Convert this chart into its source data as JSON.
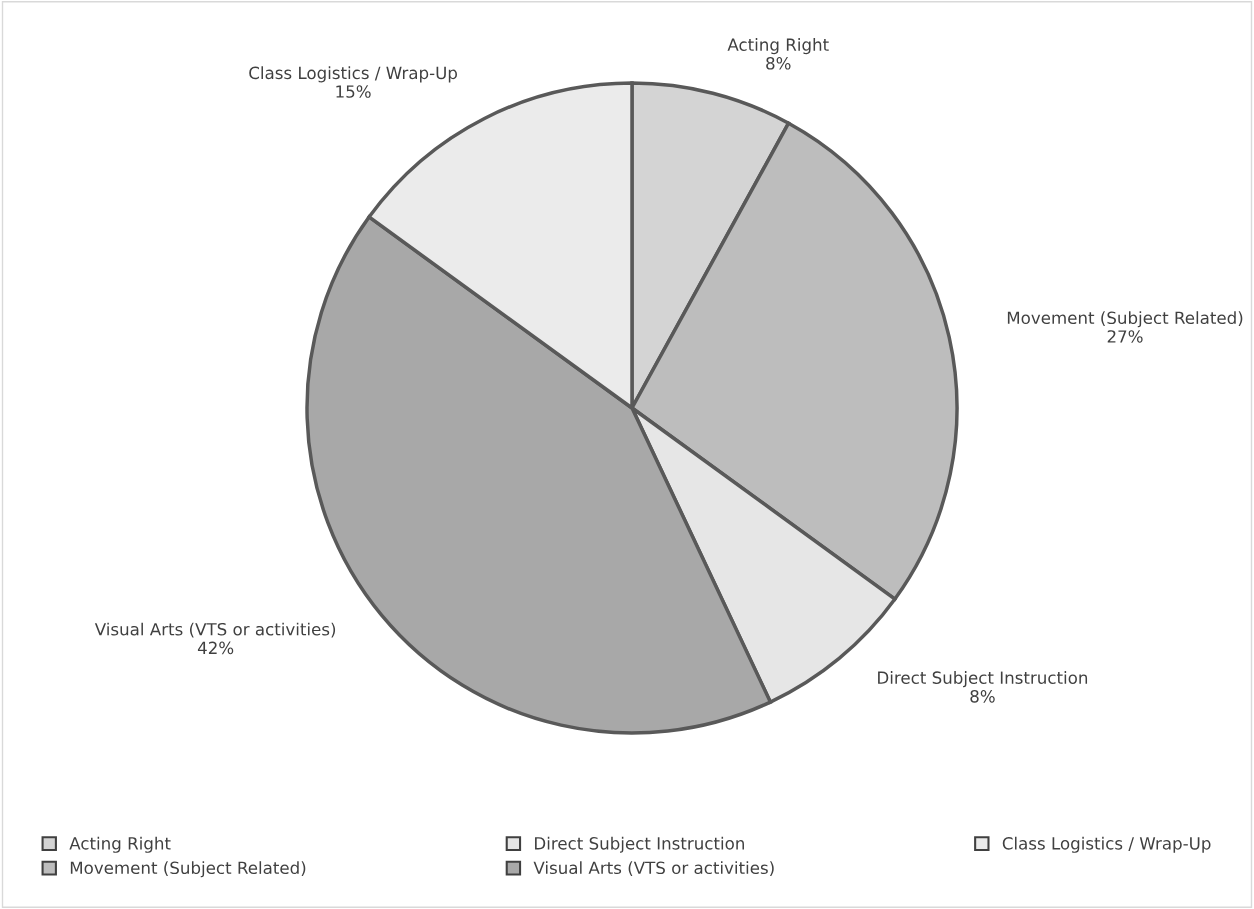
{
  "chart_data": {
    "type": "pie",
    "categories": [
      "Acting Right",
      "Movement (Subject Related)",
      "Direct Subject Instruction",
      "Visual Arts (VTS or activities)",
      "Class Logistics / Wrap-Up"
    ],
    "values": [
      8,
      27,
      8,
      42,
      15
    ],
    "value_labels": [
      "8%",
      "27%",
      "8%",
      "42%",
      "15%"
    ],
    "colors": [
      "#d4d4d4",
      "#bdbdbd",
      "#e6e6e6",
      "#a8a8a8",
      "#ebebeb"
    ],
    "legend": "bottom"
  }
}
